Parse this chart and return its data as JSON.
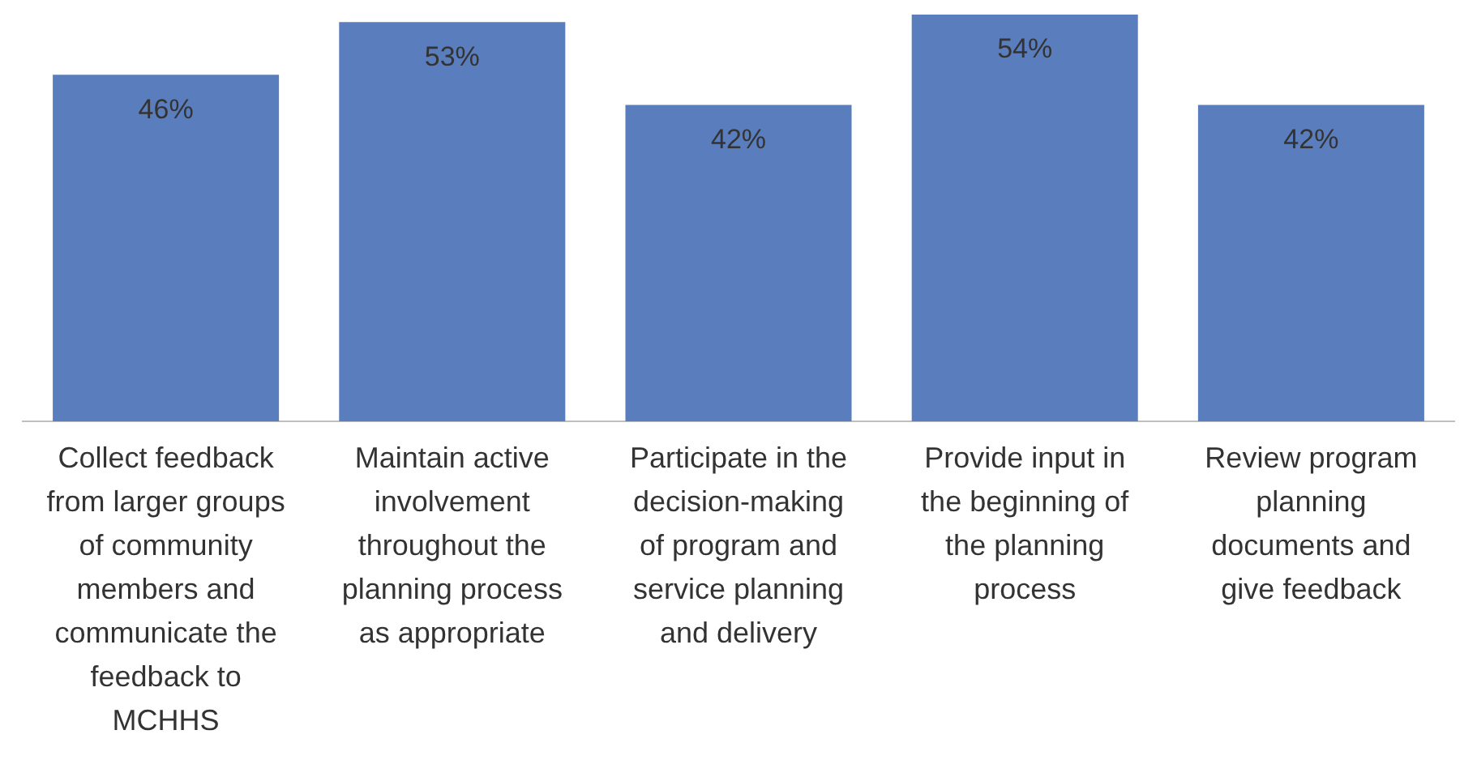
{
  "chart_data": {
    "type": "bar",
    "categories": [
      "Collect feedback from larger groups of community members and communicate the feedback to MCHHS",
      "Maintain active involvement throughout the planning process as appropriate",
      "Participate in the decision-making of program and service planning and delivery",
      "Provide input in the beginning of the planning process",
      "Review program planning documents and give feedback"
    ],
    "values": [
      46,
      53,
      42,
      54,
      42
    ],
    "value_labels": [
      "46%",
      "53%",
      "42%",
      "54%",
      "42%"
    ],
    "color": "#5a7ebd",
    "tick_labels": "x",
    "grid": false,
    "legend": false
  }
}
